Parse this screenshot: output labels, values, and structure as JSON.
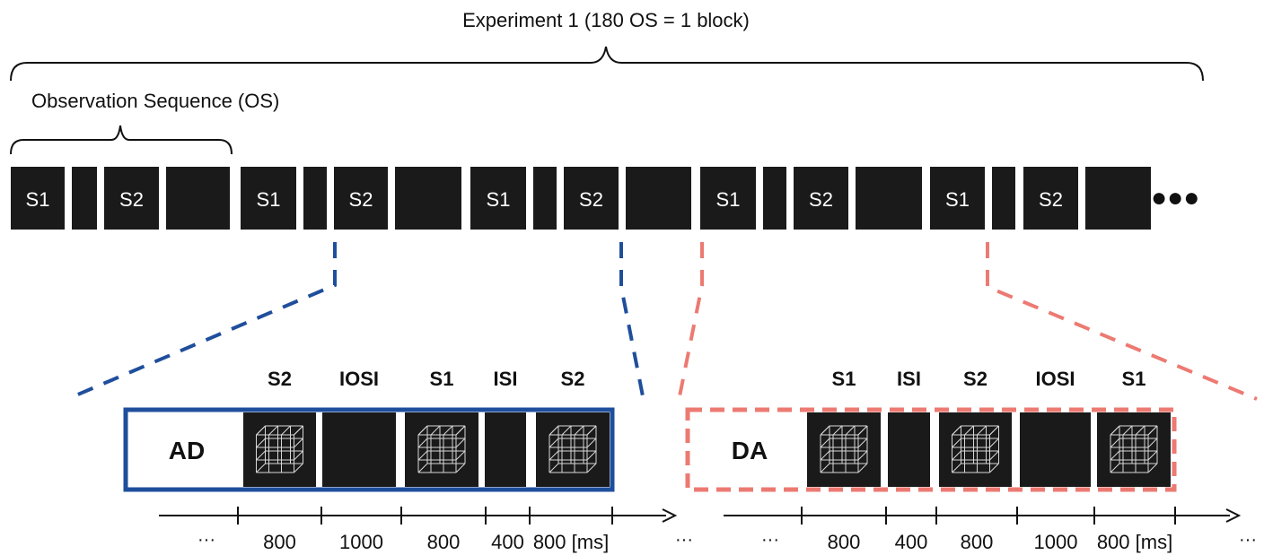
{
  "title": "Experiment 1 (180 OS = 1 block)",
  "os_label": "Observation Sequence (OS)",
  "colors": {
    "block": "#1a1a1a",
    "ad": "#1f4e9c",
    "da": "#ec7a72",
    "text": "#111111"
  },
  "sequence": {
    "labels": [
      "S1",
      "",
      "S2",
      "",
      "S1",
      "",
      "S2",
      "",
      "S1",
      "",
      "S2",
      "",
      "S1",
      "",
      "S2",
      "",
      "S1",
      "",
      "S2",
      ""
    ],
    "ellipsis": "●●●"
  },
  "panels": [
    {
      "id": "ad",
      "label": "AD",
      "style": "solid",
      "headers": [
        "S2",
        "IOSI",
        "S1",
        "ISI",
        "S2"
      ],
      "durations": [
        "800",
        "1000",
        "800",
        "400",
        "800 [ms]"
      ],
      "leading_ellipsis": "···",
      "trailing_ellipsis": "···"
    },
    {
      "id": "da",
      "label": "DA",
      "style": "dashed",
      "headers": [
        "S1",
        "ISI",
        "S2",
        "IOSI",
        "S1"
      ],
      "durations": [
        "800",
        "400",
        "800",
        "1000",
        "800 [ms]"
      ],
      "leading_ellipsis": "···",
      "trailing_ellipsis": "···"
    }
  ]
}
